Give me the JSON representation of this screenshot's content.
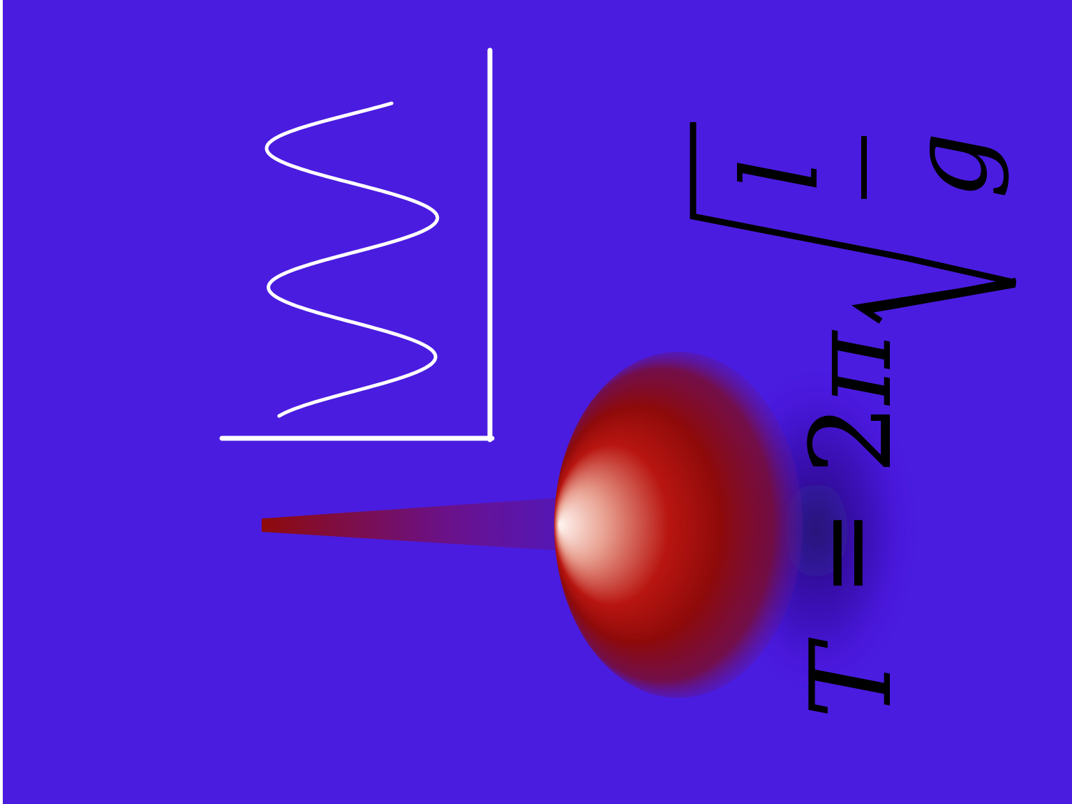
{
  "colors": {
    "background": "#4a1ce0",
    "edge_strip": "#ffffff",
    "plot_lines": "#ffffff",
    "bob_core": "#8e0a0a",
    "bob_highlight": "#fff4f0",
    "rod": "#8e0a0a",
    "shadow": "#1a0a50",
    "equation_ink": "#000000"
  },
  "equation": {
    "T": "T",
    "equals": "=",
    "two": "2",
    "pi": "π",
    "numerator": "l",
    "denominator": "g"
  },
  "icons": {
    "bob": "pendulum-bob",
    "rod": "pendulum-rod",
    "plot": "oscillation-plot",
    "radical": "square-root-sign"
  }
}
